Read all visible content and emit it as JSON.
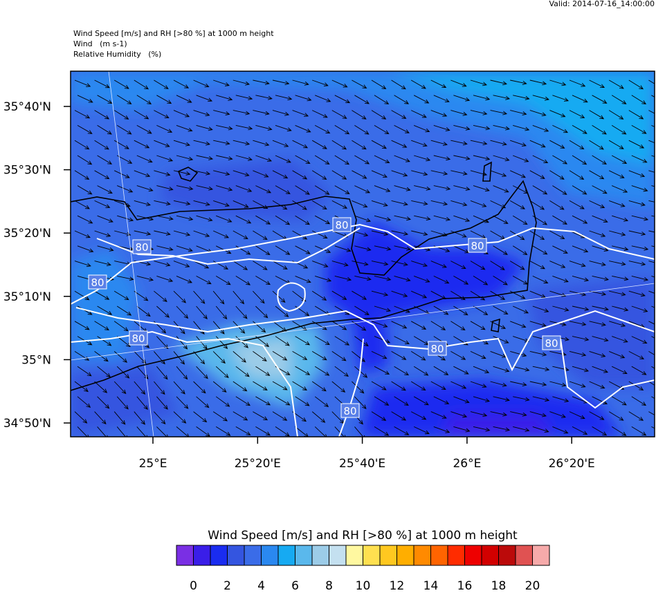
{
  "header": {
    "valid": "Valid: 2014-07-16_14:00:00",
    "lines": [
      "Wind Speed [m/s] and RH [>80 %] at 1000 m height",
      "Wind   (m s-1)",
      "Relative Humidity   (%)"
    ]
  },
  "map": {
    "lat_labels": [
      "35°40'N",
      "35°30'N",
      "35°20'N",
      "35°10'N",
      "35°N",
      "34°50'N"
    ],
    "lon_labels": [
      "25°E",
      "25°20'E",
      "25°40'E",
      "26°E",
      "26°20'E"
    ],
    "contour_labels": [
      "80",
      "80",
      "80",
      "80",
      "80",
      "80",
      "80",
      "80"
    ]
  },
  "colorbar": {
    "title": "Wind Speed [m/s] and RH [>80 %] at 1000 m height",
    "colors": [
      "#7a2fe4",
      "#3a1ee8",
      "#1a2cf0",
      "#3455e0",
      "#3a6ce8",
      "#2a88f0",
      "#16aaf2",
      "#5ab8ec",
      "#9ccce8",
      "#c4e0f0",
      "#fff8a0",
      "#ffe050",
      "#ffc820",
      "#ffae00",
      "#ff8a00",
      "#ff6400",
      "#ff2c00",
      "#ee0000",
      "#d20000",
      "#bb0a0a",
      "#e05252",
      "#f6aaaa"
    ],
    "labels": [
      0,
      2,
      4,
      6,
      8,
      10,
      12,
      14,
      16,
      18,
      20
    ]
  }
}
